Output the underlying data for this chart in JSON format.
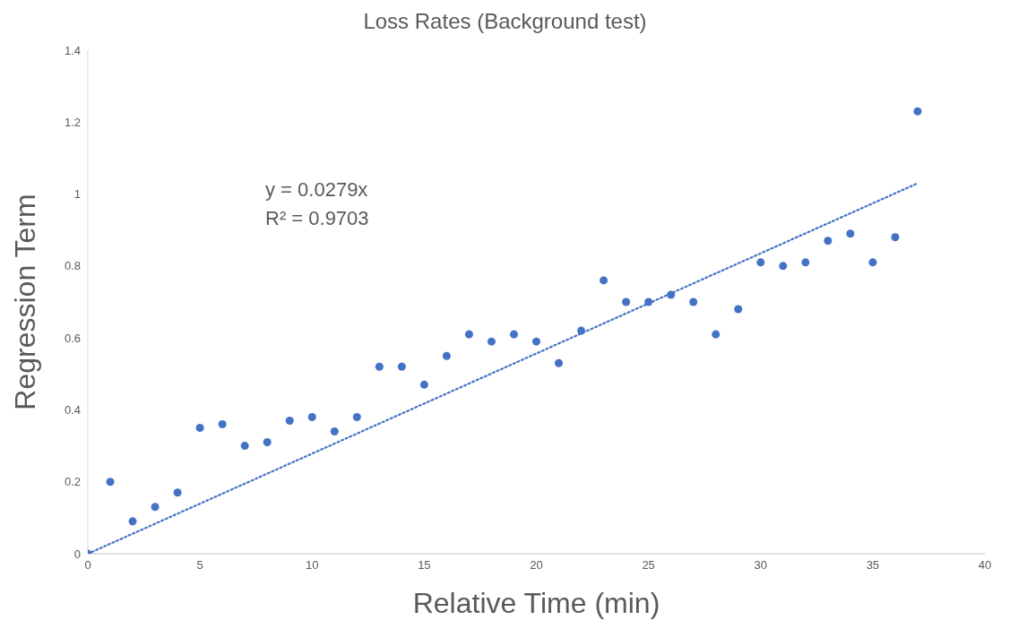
{
  "chart_data": {
    "type": "scatter",
    "title": "Loss Rates (Background test)",
    "xlabel": "Relative Time (min)",
    "ylabel": "Regression Term",
    "annotations": [
      "y = 0.0279x",
      "R² = 0.9703"
    ],
    "xlim": [
      0,
      40
    ],
    "xticks": [
      0,
      5,
      10,
      15,
      20,
      25,
      30,
      35,
      40
    ],
    "ylim": [
      0,
      1.4
    ],
    "yticks": [
      0,
      0.2,
      0.4,
      0.6,
      0.8,
      1,
      1.2,
      1.4
    ],
    "series": [
      {
        "type": "scatter",
        "marker": "circle",
        "color": "#4472c4",
        "x": [
          0,
          1,
          2,
          3,
          4,
          5,
          6,
          7,
          8,
          9,
          10,
          11,
          12,
          13,
          14,
          15,
          16,
          17,
          18,
          19,
          20,
          21,
          22,
          23,
          24,
          25,
          26,
          27,
          28,
          29,
          30,
          31,
          32,
          33,
          34,
          35,
          36,
          37
        ],
        "values": [
          0,
          0.2,
          0.09,
          0.13,
          0.17,
          0.35,
          0.36,
          0.3,
          0.31,
          0.37,
          0.38,
          0.34,
          0.38,
          0.52,
          0.52,
          0.47,
          0.55,
          0.61,
          0.59,
          0.61,
          0.59,
          0.53,
          0.62,
          0.76,
          0.7,
          0.7,
          0.72,
          0.7,
          0.61,
          0.68,
          0.81,
          0.8,
          0.81,
          0.87,
          0.89,
          0.81,
          0.88,
          1.23
        ]
      },
      {
        "type": "line",
        "marker": "none",
        "color": "#4472c4",
        "line_style": "dotted",
        "x": [
          0,
          37
        ],
        "values": [
          0,
          1.03
        ]
      }
    ]
  }
}
